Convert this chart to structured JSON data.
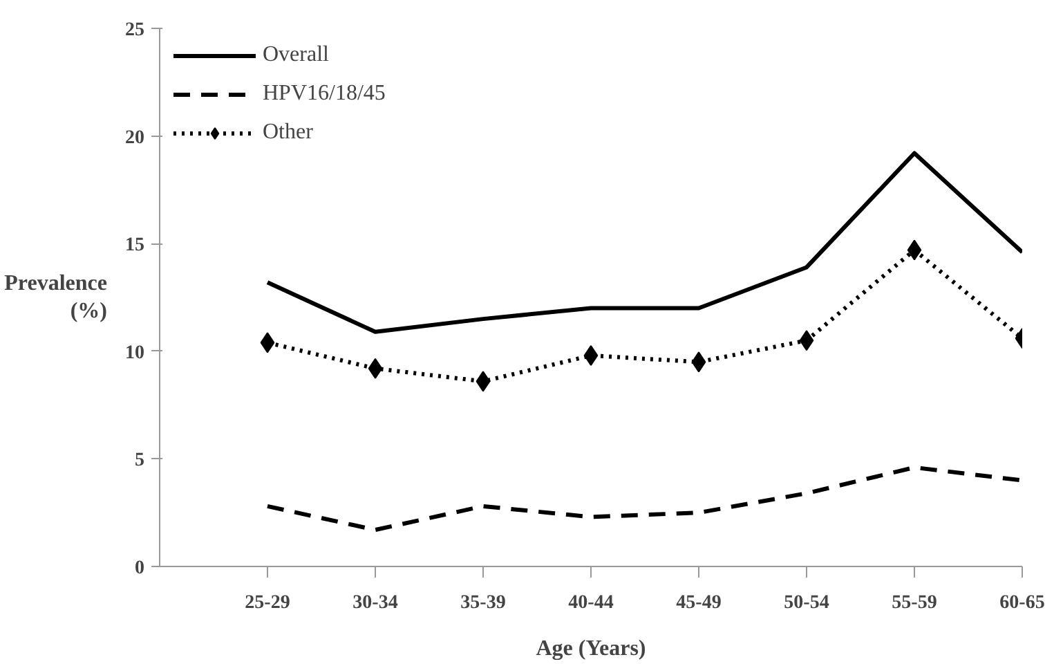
{
  "chart_data": {
    "type": "line",
    "xlabel": "Age (Years)",
    "ylabel": "Prevalence\n(%)",
    "categories": [
      "25-29",
      "30-34",
      "35-39",
      "40-44",
      "45-49",
      "50-54",
      "55-59",
      "60-65"
    ],
    "series": [
      {
        "name": "Overall",
        "color": "#000000",
        "line_style": "solid",
        "marker": "none",
        "values": [
          13.2,
          10.9,
          11.5,
          12.0,
          12.0,
          13.9,
          19.2,
          14.6
        ]
      },
      {
        "name": "HPV16/18/45",
        "color": "#000000",
        "line_style": "dashed",
        "marker": "none",
        "values": [
          2.8,
          1.7,
          2.8,
          2.3,
          2.5,
          3.4,
          4.6,
          4.0
        ]
      },
      {
        "name": "Other",
        "color": "#000000",
        "line_style": "dotted",
        "marker": "diamond",
        "values": [
          10.4,
          9.2,
          8.6,
          9.8,
          9.5,
          10.5,
          14.7,
          10.6
        ]
      }
    ],
    "ylim": [
      0,
      25
    ],
    "yticks": [
      0,
      5,
      10,
      15,
      20,
      25
    ],
    "grid": false,
    "legend": "top left"
  }
}
